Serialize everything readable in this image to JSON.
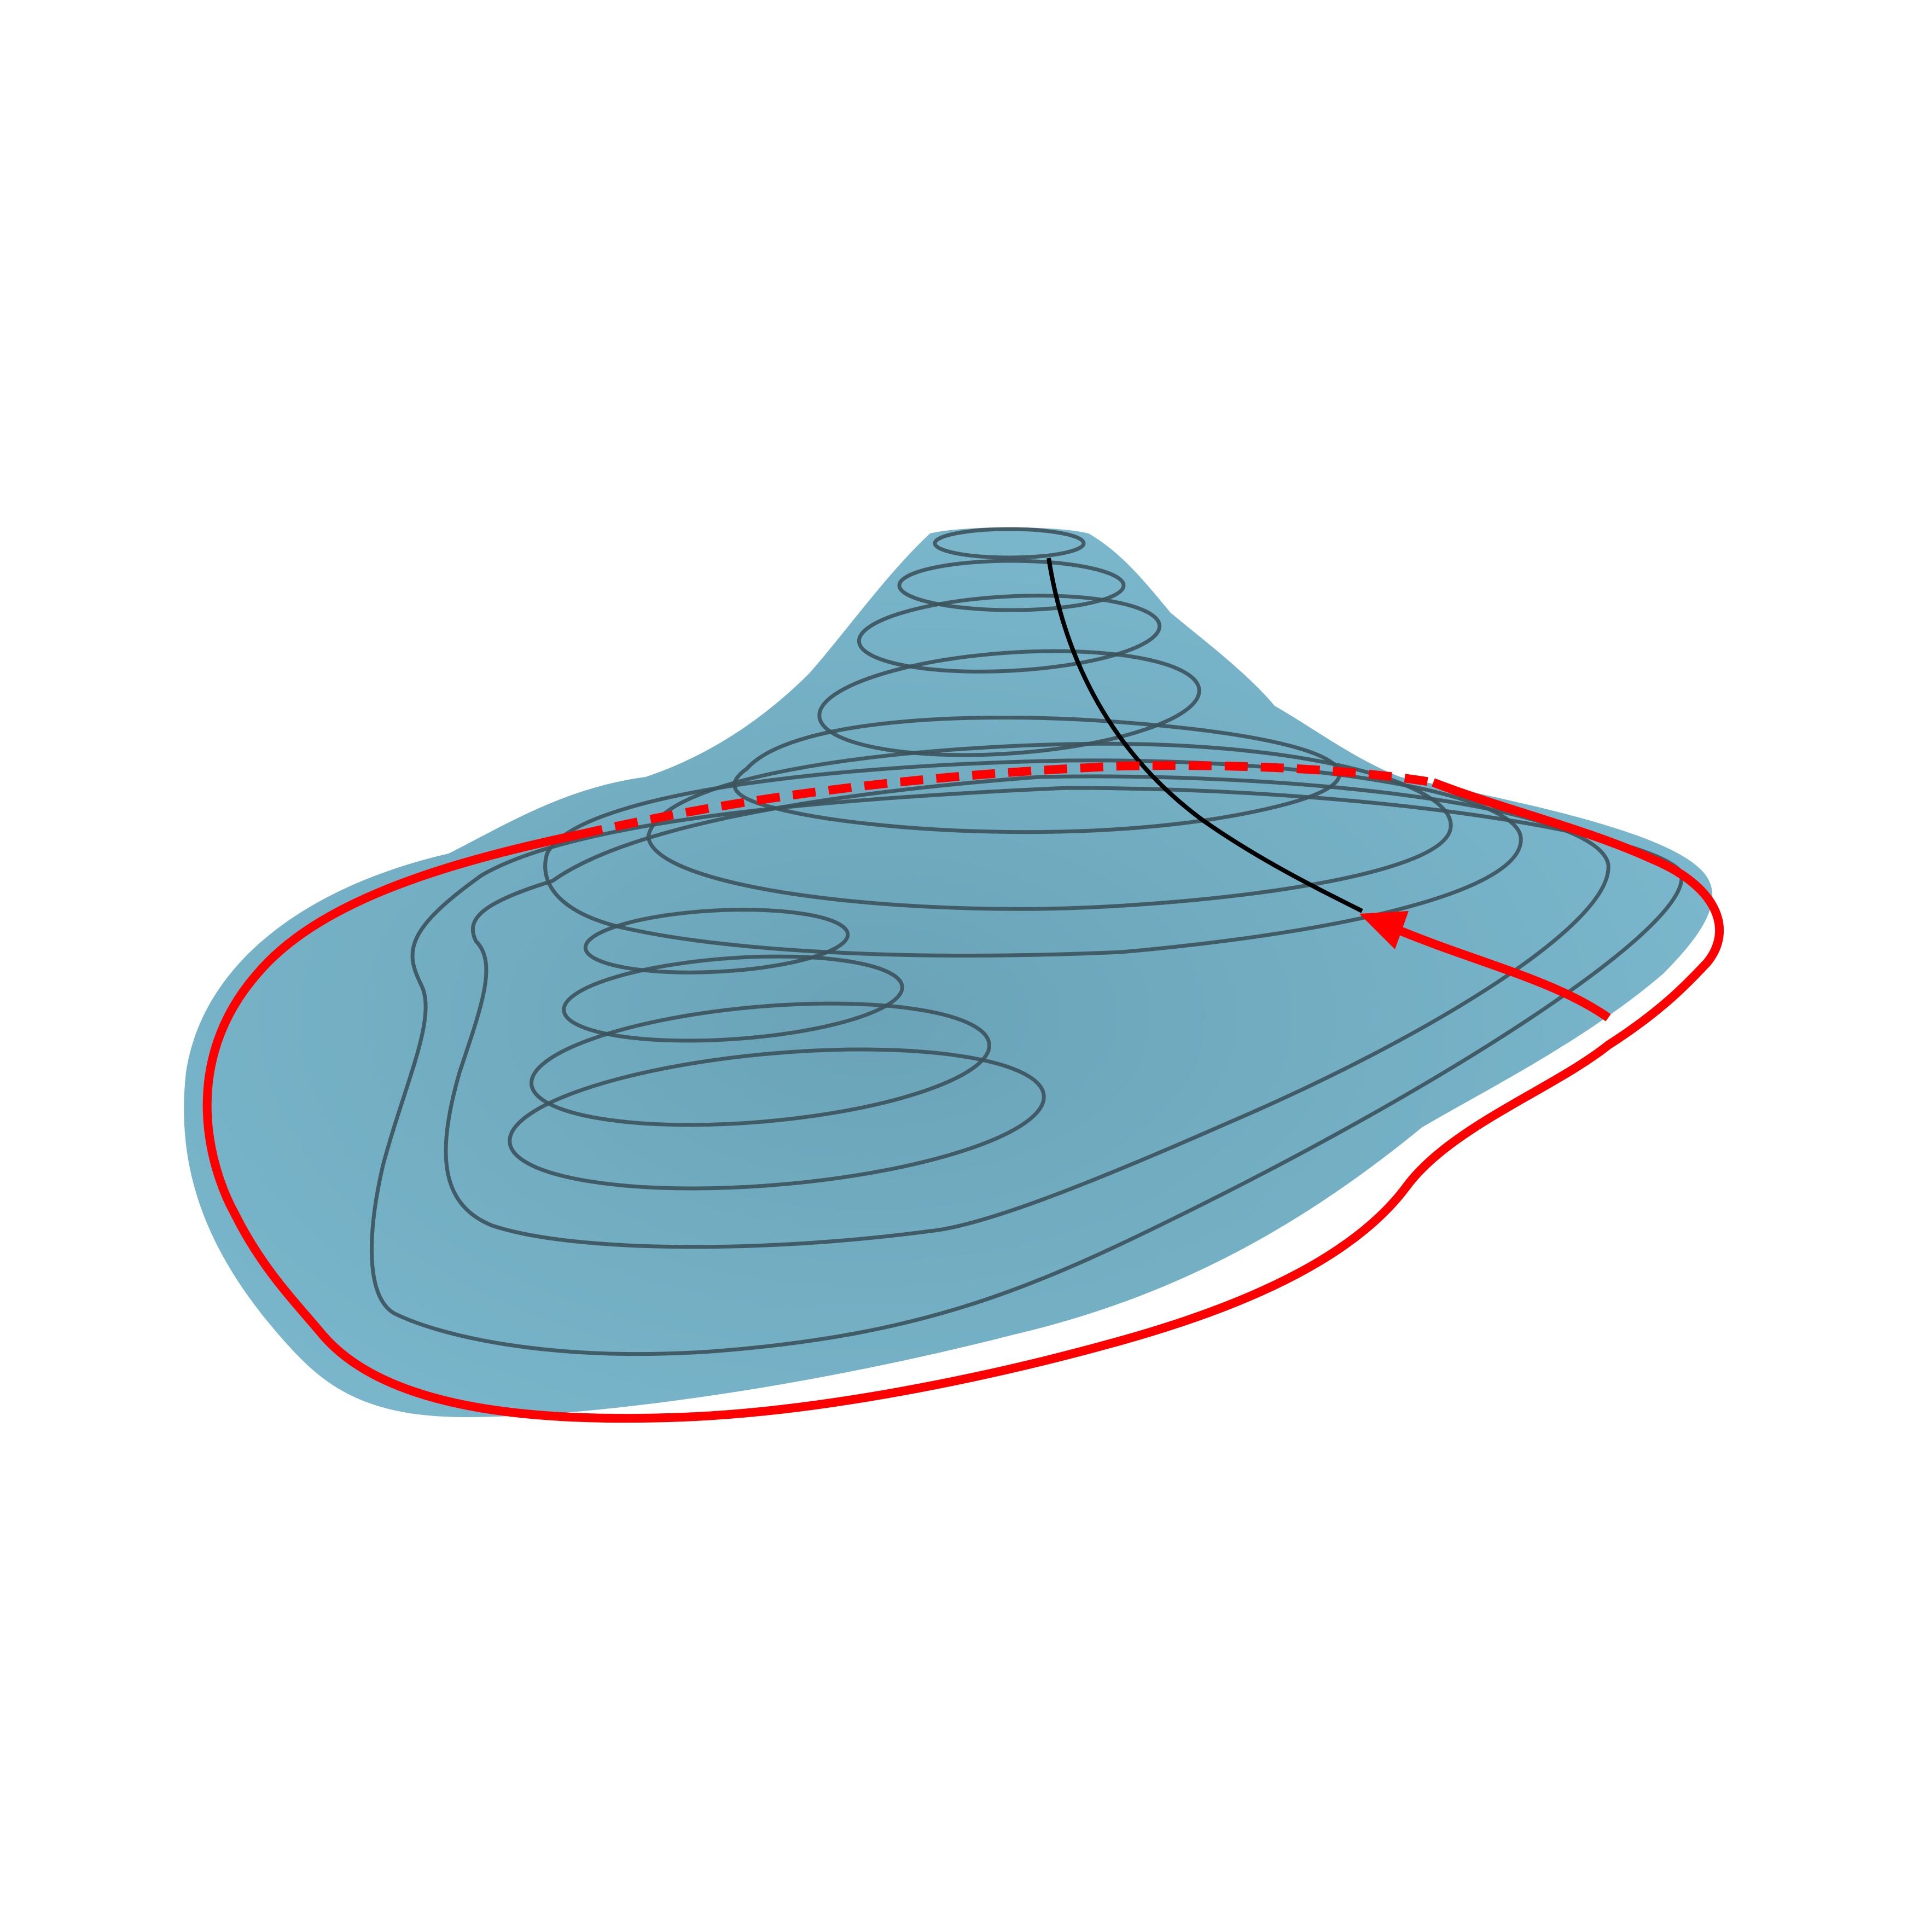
{
  "figure": {
    "description_free": true,
    "colors": {
      "background": "#ffffff",
      "surface_fill": "#7bb7cc",
      "surface_shade": "#6aa5bb",
      "contour_stroke": "#3a4f58",
      "boundary_red": "#ff0000",
      "path_black": "#000000"
    },
    "elements": {
      "surface": "mountain-surface",
      "contours": "level-curves",
      "boundary": "red-boundary-curve",
      "hidden_boundary": "red-dashed-hidden-curve",
      "path": "black-descent-path",
      "arrow": "red-arrow"
    }
  }
}
